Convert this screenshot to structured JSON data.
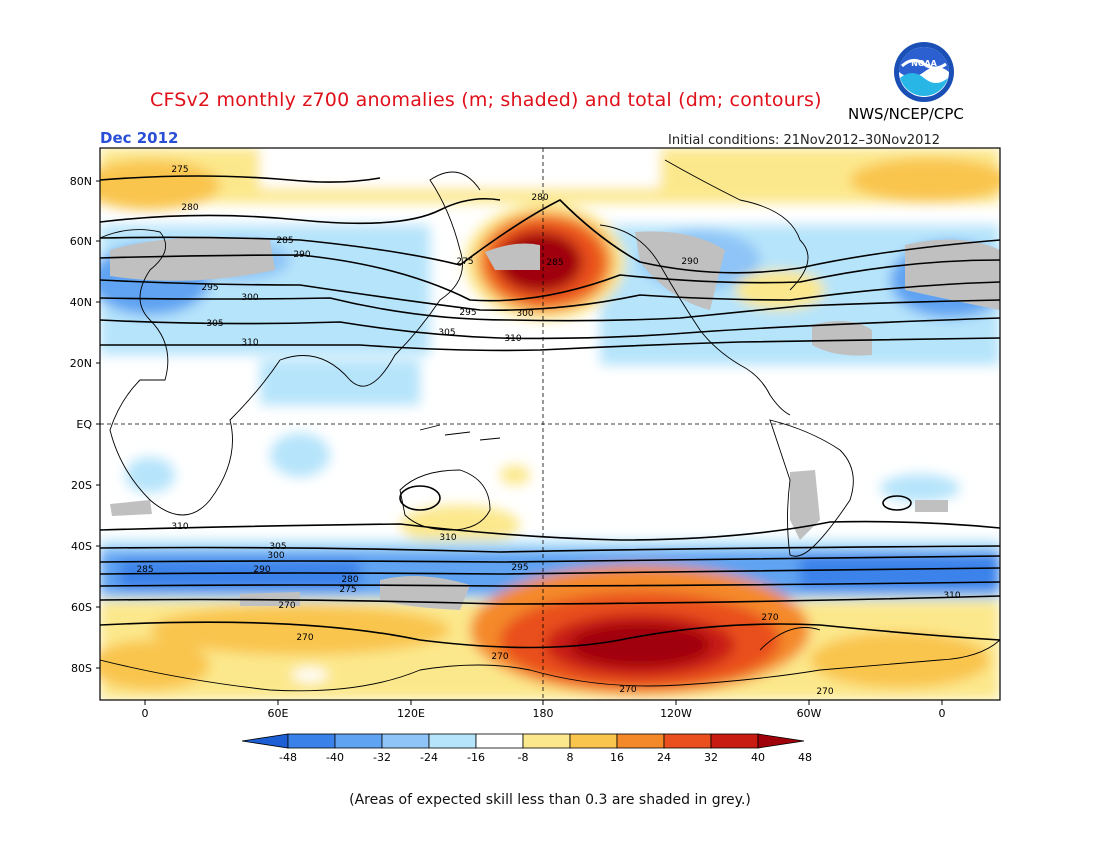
{
  "header": {
    "title": "CFSv2 monthly z700 anomalies (m; shaded) and total (dm; contours)",
    "agency": "NWS/NCEP/CPC",
    "logo_text": "NOAA",
    "valid_month": "Dec 2012",
    "initial_conditions": "Initial conditions: 21Nov2012–30Nov2012"
  },
  "axes": {
    "lat_labels": [
      "80N",
      "60N",
      "40N",
      "20N",
      "EQ",
      "20S",
      "40S",
      "60S",
      "80S"
    ],
    "lon_labels": [
      "0",
      "60E",
      "120E",
      "180",
      "120W",
      "60W",
      "0"
    ]
  },
  "contours": {
    "levels": [
      270,
      275,
      280,
      285,
      290,
      295,
      300,
      305,
      310
    ],
    "labels": [
      "275",
      "280",
      "285",
      "290",
      "295",
      "300",
      "305",
      "310",
      "275",
      "285",
      "280",
      "290",
      "295",
      "300",
      "305",
      "310",
      "305",
      "300",
      "295",
      "290",
      "285",
      "280",
      "275",
      "270",
      "270",
      "270",
      "270",
      "270",
      "270",
      "310",
      "310",
      "310"
    ]
  },
  "colorbar": {
    "tick_labels": [
      "-48",
      "-40",
      "-32",
      "-24",
      "-16",
      "-8",
      "8",
      "16",
      "24",
      "32",
      "40",
      "48"
    ],
    "colors": [
      "#1c5fd4",
      "#3a82ea",
      "#5fa3f2",
      "#8ec4f7",
      "#b6e4fb",
      "#ffffff",
      "#fce88c",
      "#f9c54d",
      "#f4892a",
      "#e9501d",
      "#c81b12",
      "#a0000a"
    ]
  },
  "colors": {
    "title": "#e0101a",
    "month": "#2a4fd6",
    "skill_grey": "#c0c0c0"
  },
  "footnote": "(Areas of expected skill less than 0.3 are shaded in grey.)"
}
